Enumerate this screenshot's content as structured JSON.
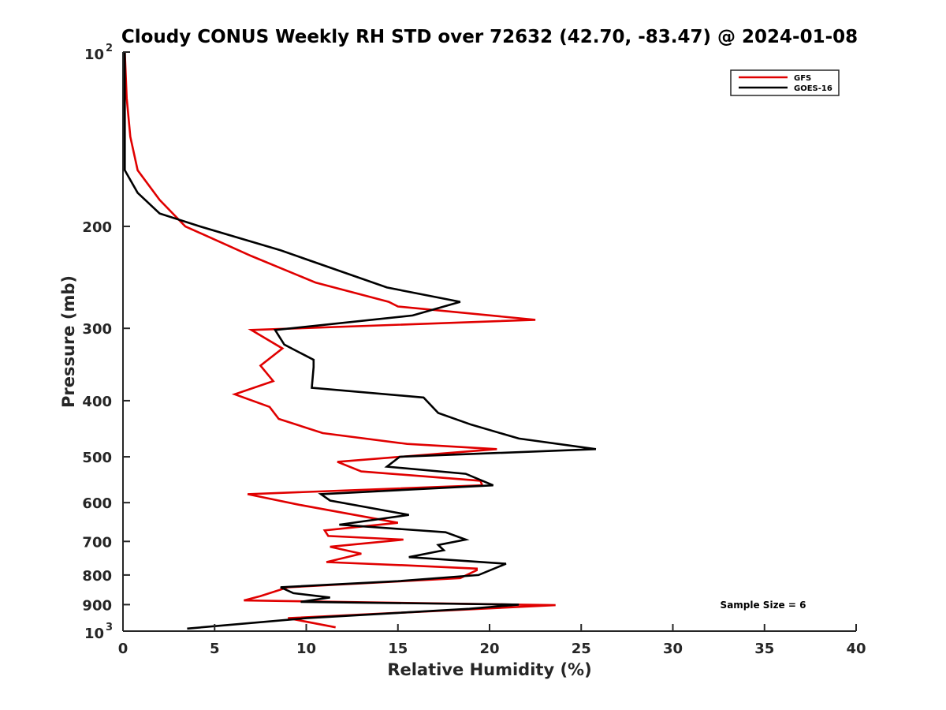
{
  "chart_data": {
    "type": "line",
    "title": "Cloudy CONUS Weekly RH STD over 72632 (42.70, -83.47) @ 2024-01-08",
    "xlabel": "Relative Humidity (%)",
    "ylabel": "Pressure (mb)",
    "xlim": [
      0,
      40
    ],
    "ylim": [
      100,
      1000
    ],
    "y_scale": "log",
    "y_reversed": true,
    "grid": false,
    "legend_position": "top-right",
    "x_ticks": [
      0,
      5,
      10,
      15,
      20,
      25,
      30,
      35,
      40
    ],
    "x_tick_labels": [
      "0",
      "5",
      "10",
      "15",
      "20",
      "25",
      "30",
      "35",
      "40"
    ],
    "y_ticks": [
      200,
      300,
      400,
      500,
      600,
      700,
      800,
      900
    ],
    "y_tick_labels": [
      "200",
      "300",
      "400",
      "500",
      "600",
      "700",
      "800",
      "900"
    ],
    "y_tick_power_labels": [
      {
        "value": 100,
        "base": "10",
        "exp": "2"
      },
      {
        "value": 1000,
        "base": "10",
        "exp": "3"
      }
    ],
    "annotations": [
      {
        "text": "Sample Size = 6"
      }
    ],
    "series": [
      {
        "name": "GFS",
        "color": "#e00000",
        "x": [
          0.1,
          0.2,
          0.4,
          0.8,
          2.0,
          3.4,
          7.0,
          10.5,
          14.5,
          15.0,
          22.5,
          7.0,
          8.7,
          7.5,
          8.2,
          6.1,
          8.0,
          8.5,
          10.9,
          15.5,
          20.4,
          11.7,
          13.0,
          19.5,
          19.6,
          6.8,
          9.6,
          15.0,
          11.0,
          11.2,
          15.3,
          11.3,
          13.0,
          11.1,
          15.5,
          19.3,
          19.3,
          18.4,
          9.0,
          7.5,
          6.6,
          21.5,
          23.6,
          9.0,
          11.6
        ],
        "y": [
          100,
          120,
          140,
          160,
          180,
          200,
          225,
          250,
          270,
          275,
          290,
          302,
          325,
          348,
          370,
          390,
          410,
          430,
          455,
          475,
          485,
          510,
          530,
          550,
          560,
          580,
          605,
          650,
          670,
          685,
          695,
          715,
          735,
          760,
          770,
          780,
          785,
          810,
          840,
          870,
          885,
          900,
          902,
          950,
          985
        ]
      },
      {
        "name": "GOES-16",
        "color": "#000000",
        "x": [
          0.1,
          0.1,
          0.1,
          0.1,
          0.8,
          2.0,
          4.2,
          8.6,
          14.4,
          18.4,
          15.8,
          8.3,
          8.8,
          10.4,
          10.4,
          10.3,
          16.4,
          17.2,
          19.0,
          21.6,
          25.8,
          15.1,
          14.4,
          18.7,
          20.2,
          10.8,
          11.3,
          15.6,
          11.8,
          17.6,
          18.7,
          17.2,
          17.5,
          15.6,
          20.9,
          19.4,
          15.0,
          8.6,
          9.3,
          11.3,
          9.7,
          21.6,
          18.9,
          10.0,
          3.5
        ],
        "y": [
          100,
          120,
          140,
          160,
          175,
          190,
          200,
          220,
          255,
          270,
          285,
          302,
          320,
          340,
          350,
          380,
          395,
          420,
          440,
          465,
          485,
          500,
          520,
          535,
          560,
          580,
          595,
          630,
          655,
          675,
          695,
          710,
          725,
          745,
          765,
          800,
          820,
          840,
          860,
          875,
          890,
          900,
          915,
          950,
          990
        ]
      }
    ]
  }
}
